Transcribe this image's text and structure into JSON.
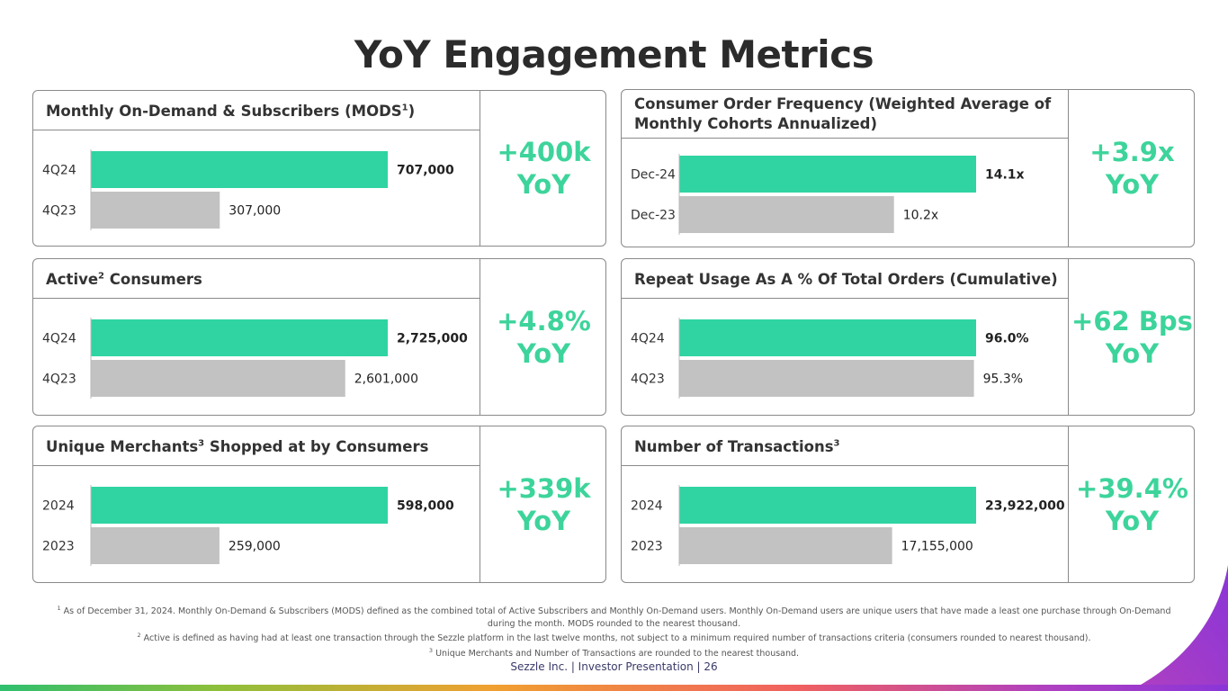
{
  "title": "YoY Engagement Metrics",
  "colors": {
    "current": "#2fd4a2",
    "prior": "#c2c2c2",
    "accent": "#3dd49b"
  },
  "panels": [
    {
      "heading": "Monthly On-Demand & Subscribers (MODS",
      "sup": "1",
      "heading_suffix": ")",
      "kpi_line1": "+400k",
      "kpi_line2": "YoY"
    },
    {
      "heading": "Consumer Order Frequency (Weighted Average of Monthly Cohorts Annualized)",
      "sup": "",
      "heading_suffix": "",
      "kpi_line1": "+3.9x",
      "kpi_line2": "YoY"
    },
    {
      "heading_pre": "Active",
      "sup": "2",
      "heading": " Consumers",
      "kpi_line1": "+4.8%",
      "kpi_line2": "YoY"
    },
    {
      "heading": "Repeat Usage As A % Of Total Orders (Cumulative)",
      "sup": "",
      "kpi_line1": "+62 Bps",
      "kpi_line2": "YoY"
    },
    {
      "heading_pre": "Unique Merchants",
      "sup": "3",
      "heading": " Shopped at by Consumers",
      "kpi_line1": "+339k",
      "kpi_line2": "YoY"
    },
    {
      "heading_pre": "Number of Transactions",
      "sup": "3",
      "heading": "",
      "kpi_line1": "+39.4%",
      "kpi_line2": "YoY"
    }
  ],
  "chart_data": [
    {
      "type": "bar",
      "orientation": "horizontal",
      "title": "Monthly On-Demand & Subscribers (MODS1)",
      "categories": [
        "4Q24",
        "4Q23"
      ],
      "values": [
        707000,
        307000
      ],
      "labels": [
        "707,000",
        "307,000"
      ],
      "xlim": [
        0,
        707000
      ]
    },
    {
      "type": "bar",
      "orientation": "horizontal",
      "title": "Consumer Order Frequency (Weighted Average of Monthly Cohorts Annualized)",
      "categories": [
        "Dec-24",
        "Dec-23"
      ],
      "values": [
        14.1,
        10.2
      ],
      "labels": [
        "14.1x",
        "10.2x"
      ],
      "xlim": [
        0,
        14.1
      ]
    },
    {
      "type": "bar",
      "orientation": "horizontal",
      "title": "Active2 Consumers",
      "categories": [
        "4Q24",
        "4Q23"
      ],
      "values": [
        2725000,
        2601000
      ],
      "labels": [
        "2,725,000",
        "2,601,000"
      ],
      "xlim": [
        2200000,
        2725000
      ]
    },
    {
      "type": "bar",
      "orientation": "horizontal",
      "title": "Repeat Usage As A % Of Total Orders (Cumulative)",
      "categories": [
        "4Q24",
        "4Q23"
      ],
      "values": [
        96.0,
        95.3
      ],
      "labels": [
        "96.0%",
        "95.3%"
      ],
      "xlim": [
        0,
        96.0
      ]
    },
    {
      "type": "bar",
      "orientation": "horizontal",
      "title": "Unique Merchants3 Shopped at by Consumers",
      "categories": [
        "2024",
        "2023"
      ],
      "values": [
        598000,
        259000
      ],
      "labels": [
        "598,000",
        "259,000"
      ],
      "xlim": [
        0,
        598000
      ]
    },
    {
      "type": "bar",
      "orientation": "horizontal",
      "title": "Number of Transactions3",
      "categories": [
        "2024",
        "2023"
      ],
      "values": [
        23922000,
        17155000
      ],
      "labels": [
        "23,922,000",
        "17,155,000"
      ],
      "xlim": [
        0,
        23922000
      ]
    }
  ],
  "footnotes": {
    "n1_sup": "1",
    "n1": "As of December 31, 2024. Monthly On-Demand & Subscribers (MODS) defined as the combined total of Active Subscribers and Monthly On-Demand users. Monthly On-Demand users are unique users that have made a least one purchase through On-Demand during the month. MODS rounded to the nearest thousand.",
    "n2_sup": "2",
    "n2": "Active is defined as having had at least one transaction through the Sezzle platform in the last twelve months, not subject to a minimum required number of transactions criteria (consumers rounded to nearest thousand).",
    "n3_sup": "3",
    "n3": "Unique Merchants and Number of Transactions are rounded to the nearest thousand."
  },
  "footer": "Sezzle Inc. | Investor Presentation | 26"
}
